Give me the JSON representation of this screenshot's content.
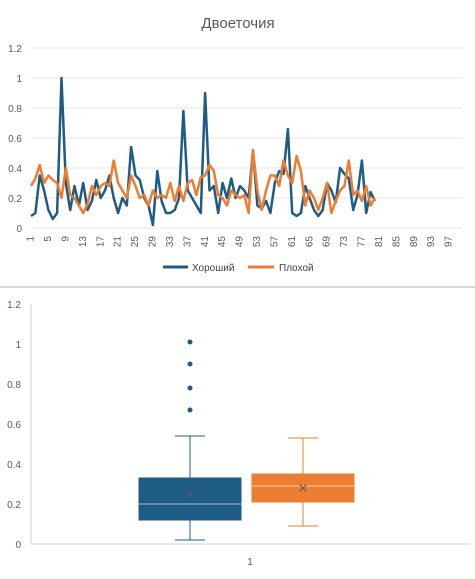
{
  "chart_data": [
    {
      "type": "line",
      "title": "Двоеточия",
      "ylim": [
        0,
        1.2
      ],
      "y_ticks": [
        "0",
        "0.2",
        "0.4",
        "0.6",
        "0.8",
        "1",
        "1.2"
      ],
      "x_range": [
        1,
        100
      ],
      "x_ticks": [
        "1",
        "5",
        "9",
        "13",
        "17",
        "21",
        "25",
        "29",
        "33",
        "37",
        "41",
        "45",
        "49",
        "53",
        "57",
        "61",
        "65",
        "69",
        "73",
        "77",
        "81",
        "85",
        "89",
        "93",
        "97"
      ],
      "grid": true,
      "legend_position": "bottom",
      "series": [
        {
          "name": "Хороший",
          "color": "#1f5c85",
          "values": [
            0.08,
            0.1,
            0.35,
            0.25,
            0.12,
            0.06,
            0.1,
            1.0,
            0.3,
            0.12,
            0.28,
            0.15,
            0.3,
            0.12,
            0.18,
            0.32,
            0.2,
            0.25,
            0.35,
            0.2,
            0.1,
            0.2,
            0.15,
            0.54,
            0.35,
            0.32,
            0.2,
            0.15,
            0.02,
            0.38,
            0.18,
            0.1,
            0.1,
            0.12,
            0.2,
            0.78,
            0.25,
            0.2,
            0.15,
            0.1,
            0.9,
            0.25,
            0.28,
            0.1,
            0.3,
            0.2,
            0.33,
            0.2,
            0.28,
            0.25,
            0.2,
            0.52,
            0.15,
            0.13,
            0.18,
            0.1,
            0.3,
            0.38,
            0.36,
            0.66,
            0.1,
            0.08,
            0.1,
            0.28,
            0.2,
            0.12,
            0.08,
            0.12,
            0.3,
            0.25,
            0.17,
            0.4,
            0.36,
            0.33,
            0.12,
            0.22,
            0.45,
            0.1,
            0.24,
            0.18
          ]
        },
        {
          "name": "Плохой",
          "color": "#ed7d31",
          "values": [
            0.28,
            0.33,
            0.42,
            0.3,
            0.35,
            0.32,
            0.3,
            0.2,
            0.4,
            0.22,
            0.2,
            0.15,
            0.1,
            0.16,
            0.28,
            0.22,
            0.28,
            0.3,
            0.28,
            0.45,
            0.3,
            0.25,
            0.2,
            0.35,
            0.28,
            0.2,
            0.22,
            0.15,
            0.25,
            0.2,
            0.22,
            0.2,
            0.3,
            0.18,
            0.28,
            0.18,
            0.3,
            0.32,
            0.22,
            0.34,
            0.35,
            0.42,
            0.38,
            0.22,
            0.2,
            0.15,
            0.25,
            0.22,
            0.2,
            0.22,
            0.1,
            0.52,
            0.25,
            0.12,
            0.25,
            0.35,
            0.35,
            0.28,
            0.45,
            0.35,
            0.3,
            0.48,
            0.38,
            0.15,
            0.25,
            0.2,
            0.12,
            0.2,
            0.3,
            0.1,
            0.18,
            0.25,
            0.28,
            0.45,
            0.22,
            0.25,
            0.18,
            0.28,
            0.15,
            0.2
          ]
        }
      ]
    },
    {
      "type": "box",
      "ylim": [
        0,
        1.2
      ],
      "y_ticks": [
        "0",
        "0.2",
        "0.4",
        "0.6",
        "0.8",
        "1",
        "1.2"
      ],
      "categories": [
        "1"
      ],
      "grid": false,
      "boxes": [
        {
          "color": "#1f5c85",
          "min": 0.02,
          "q1": 0.12,
          "median": 0.2,
          "q3": 0.33,
          "max": 0.54,
          "mean": 0.25,
          "outliers": [
            0.67,
            0.78,
            0.9,
            1.01
          ]
        },
        {
          "color": "#ed7d31",
          "min": 0.09,
          "q1": 0.21,
          "median": 0.29,
          "q3": 0.35,
          "max": 0.53,
          "mean": 0.28,
          "outliers": []
        }
      ]
    }
  ]
}
